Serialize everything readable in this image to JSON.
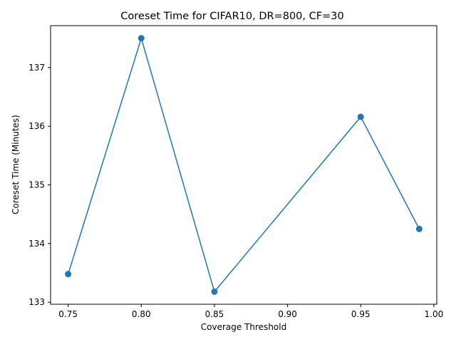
{
  "chart_data": {
    "type": "line",
    "title": "Coreset Time for CIFAR10, DR=800, CF=30",
    "xlabel": "Coverage Threshold",
    "ylabel": "Coreset Time (Minutes)",
    "x": [
      0.75,
      0.8,
      0.85,
      0.95,
      0.99
    ],
    "series": [
      {
        "values": [
          133.48,
          137.5,
          133.18,
          136.16,
          134.25
        ]
      }
    ],
    "xticks": [
      0.75,
      0.8,
      0.85,
      0.9,
      0.95,
      1.0
    ],
    "xtick_labels": [
      "0.75",
      "0.80",
      "0.85",
      "0.90",
      "0.95",
      "1.00"
    ],
    "yticks": [
      133,
      134,
      135,
      136,
      137
    ],
    "ytick_labels": [
      "133",
      "134",
      "135",
      "136",
      "137"
    ],
    "xlim": [
      0.738,
      1.002
    ],
    "ylim": [
      132.966,
      137.714
    ],
    "grid": false,
    "legend": "none",
    "line_color": "#1f77b4",
    "marker": "circle"
  }
}
